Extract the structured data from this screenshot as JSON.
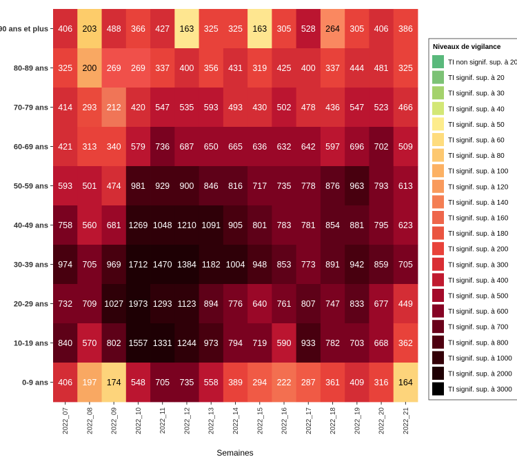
{
  "chart_data": {
    "type": "heatmap",
    "xlabel": "Semaines",
    "x": [
      "2022_07",
      "2022_08",
      "2022_09",
      "2022_10",
      "2022_11",
      "2022_12",
      "2022_13",
      "2022_14",
      "2022_15",
      "2022_16",
      "2022_17",
      "2022_18",
      "2022_19",
      "2022_20",
      "2022_21"
    ],
    "y": [
      "90 ans et plus",
      "80-89 ans",
      "70-79 ans",
      "60-69 ans",
      "50-59 ans",
      "40-49 ans",
      "30-39 ans",
      "20-29 ans",
      "10-19 ans",
      "0-9 ans"
    ],
    "values": [
      [
        406,
        203,
        488,
        366,
        427,
        163,
        325,
        325,
        163,
        305,
        528,
        264,
        305,
        406,
        386
      ],
      [
        325,
        200,
        269,
        269,
        337,
        400,
        356,
        431,
        319,
        425,
        400,
        337,
        444,
        481,
        325
      ],
      [
        414,
        293,
        212,
        420,
        547,
        535,
        593,
        493,
        430,
        502,
        478,
        436,
        547,
        523,
        466
      ],
      [
        421,
        313,
        340,
        579,
        736,
        687,
        650,
        665,
        636,
        632,
        642,
        597,
        696,
        702,
        509
      ],
      [
        593,
        501,
        474,
        981,
        929,
        900,
        846,
        816,
        717,
        735,
        778,
        876,
        963,
        793,
        613
      ],
      [
        758,
        560,
        681,
        1269,
        1048,
        1210,
        1091,
        905,
        801,
        783,
        781,
        854,
        881,
        795,
        623
      ],
      [
        974,
        705,
        969,
        1712,
        1470,
        1384,
        1182,
        1004,
        948,
        853,
        773,
        891,
        942,
        859,
        705
      ],
      [
        732,
        709,
        1027,
        1973,
        1293,
        1123,
        894,
        776,
        640,
        761,
        807,
        747,
        833,
        677,
        449
      ],
      [
        840,
        570,
        802,
        1557,
        1331,
        1244,
        973,
        794,
        719,
        590,
        933,
        782,
        703,
        668,
        362
      ],
      [
        406,
        197,
        174,
        548,
        705,
        735,
        558,
        389,
        294,
        222,
        287,
        361,
        409,
        316,
        164
      ]
    ],
    "categories_colors": [
      [
        1,
        3,
        3,
        1,
        2,
        5,
        1,
        1,
        5,
        1,
        3,
        1,
        1,
        1,
        1
      ],
      [
        1,
        3,
        1,
        1,
        2,
        2,
        2,
        2,
        2,
        2,
        2,
        2,
        2,
        2,
        1
      ],
      [
        2,
        1,
        2,
        2,
        3,
        3,
        3,
        2,
        2,
        3,
        2,
        2,
        3,
        3,
        2
      ],
      [
        2,
        2,
        2,
        3,
        4,
        4,
        4,
        4,
        4,
        4,
        4,
        3,
        4,
        4,
        3
      ],
      [
        3,
        3,
        2,
        5,
        5,
        5,
        5,
        5,
        4,
        4,
        4,
        5,
        5,
        4,
        3
      ],
      [
        4,
        3,
        4,
        6,
        6,
        6,
        6,
        5,
        5,
        5,
        4,
        5,
        5,
        4,
        3
      ],
      [
        5,
        4,
        5,
        6,
        6,
        6,
        6,
        6,
        5,
        5,
        4,
        5,
        5,
        5,
        4
      ],
      [
        4,
        4,
        6,
        6,
        6,
        6,
        5,
        4,
        4,
        4,
        5,
        4,
        5,
        4,
        2
      ],
      [
        5,
        3,
        5,
        6,
        6,
        6,
        5,
        4,
        4,
        3,
        5,
        4,
        4,
        4,
        2
      ],
      [
        1,
        3,
        3,
        3,
        4,
        4,
        3,
        2,
        1,
        1,
        1,
        2,
        2,
        1,
        3
      ]
    ],
    "palette": [
      "#ee4a38",
      "#f0473a",
      "#e33a2f",
      "#c0102a",
      "#9a0427",
      "#6b0015",
      "#3f000a"
    ],
    "light_cells": {
      "203": "#fdcc6a",
      "200": "#f9a862",
      "212": "#f07557",
      "197": "#f9a862",
      "174": "#fdd47b",
      "163": "#fee690",
      "264": "#fa8860",
      "164": "#fdd47b",
      "269": "#f0504a",
      "293": "#ea4a3c",
      "222": "#f36f50",
      "287": "#f05a45",
      "294": "#f05a45"
    },
    "legend": {
      "title": "Niveaux de vigilance",
      "entries": [
        {
          "label": "TI non signif. sup. à 20",
          "color": "#5ab97c"
        },
        {
          "label": "TI signif. sup. à 20",
          "color": "#7cc275"
        },
        {
          "label": "TI signif. sup. à 30",
          "color": "#a4d26c"
        },
        {
          "label": "TI signif. sup. à 40",
          "color": "#d3e776"
        },
        {
          "label": "TI signif. sup. à 50",
          "color": "#fdec8c"
        },
        {
          "label": "TI signif. sup. à 60",
          "color": "#fedc7e"
        },
        {
          "label": "TI signif. sup. à 80",
          "color": "#fdc870"
        },
        {
          "label": "TI signif. sup. à 100",
          "color": "#fcb164"
        },
        {
          "label": "TI signif. sup. à 120",
          "color": "#f99a5c"
        },
        {
          "label": "TI signif. sup. à 140",
          "color": "#f47f54"
        },
        {
          "label": "TI signif. sup. à 160",
          "color": "#ee664b"
        },
        {
          "label": "TI signif. sup. à 180",
          "color": "#ea5541"
        },
        {
          "label": "TI signif. sup. à 200",
          "color": "#e8423a"
        },
        {
          "label": "TI signif. sup. à 300",
          "color": "#d92e34"
        },
        {
          "label": "TI signif. sup. à 400",
          "color": "#c01a2f"
        },
        {
          "label": "TI signif. sup. à 500",
          "color": "#a40a2a"
        },
        {
          "label": "TI signif. sup. à 600",
          "color": "#860324"
        },
        {
          "label": "TI signif. sup. à 700",
          "color": "#6a011a"
        },
        {
          "label": "TI signif. sup. à 800",
          "color": "#4e0010"
        },
        {
          "label": "TI signif. sup. à 1000",
          "color": "#330008"
        },
        {
          "label": "TI signif. sup. à 2000",
          "color": "#1f0004"
        },
        {
          "label": "TI signif. sup. à 3000",
          "color": "#000000"
        }
      ]
    }
  }
}
